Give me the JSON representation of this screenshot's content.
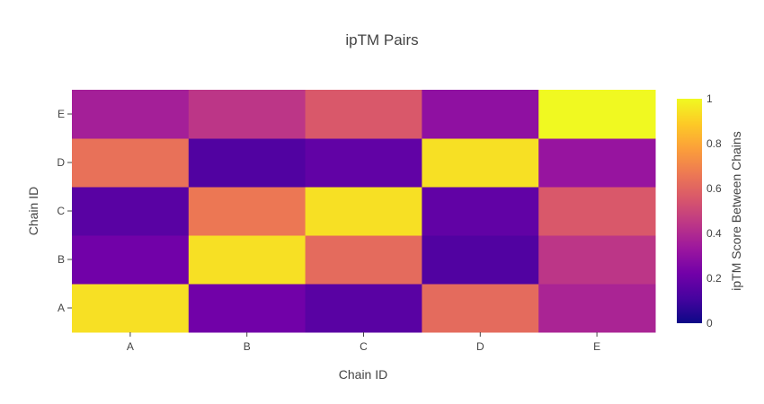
{
  "chart_data": {
    "type": "heatmap",
    "title": "ipTM Pairs",
    "xlabel": "Chain ID",
    "ylabel": "Chain ID",
    "x": [
      "A",
      "B",
      "C",
      "D",
      "E"
    ],
    "y": [
      "A",
      "B",
      "C",
      "D",
      "E"
    ],
    "z": [
      [
        0.94,
        0.22,
        0.16,
        0.62,
        0.38
      ],
      [
        0.22,
        0.94,
        0.62,
        0.14,
        0.44
      ],
      [
        0.16,
        0.66,
        0.94,
        0.18,
        0.56
      ],
      [
        0.64,
        0.14,
        0.18,
        0.94,
        0.32
      ],
      [
        0.36,
        0.44,
        0.56,
        0.3,
        1.0
      ]
    ],
    "zlim": [
      0,
      1
    ],
    "colorbar": {
      "title": "ipTM Score Between Chains",
      "ticks": [
        0,
        0.2,
        0.4,
        0.6,
        0.8,
        1
      ],
      "tick_labels": [
        "0",
        "0.2",
        "0.4",
        "0.6",
        "0.8",
        "1"
      ],
      "colorscale": "plasma"
    }
  }
}
